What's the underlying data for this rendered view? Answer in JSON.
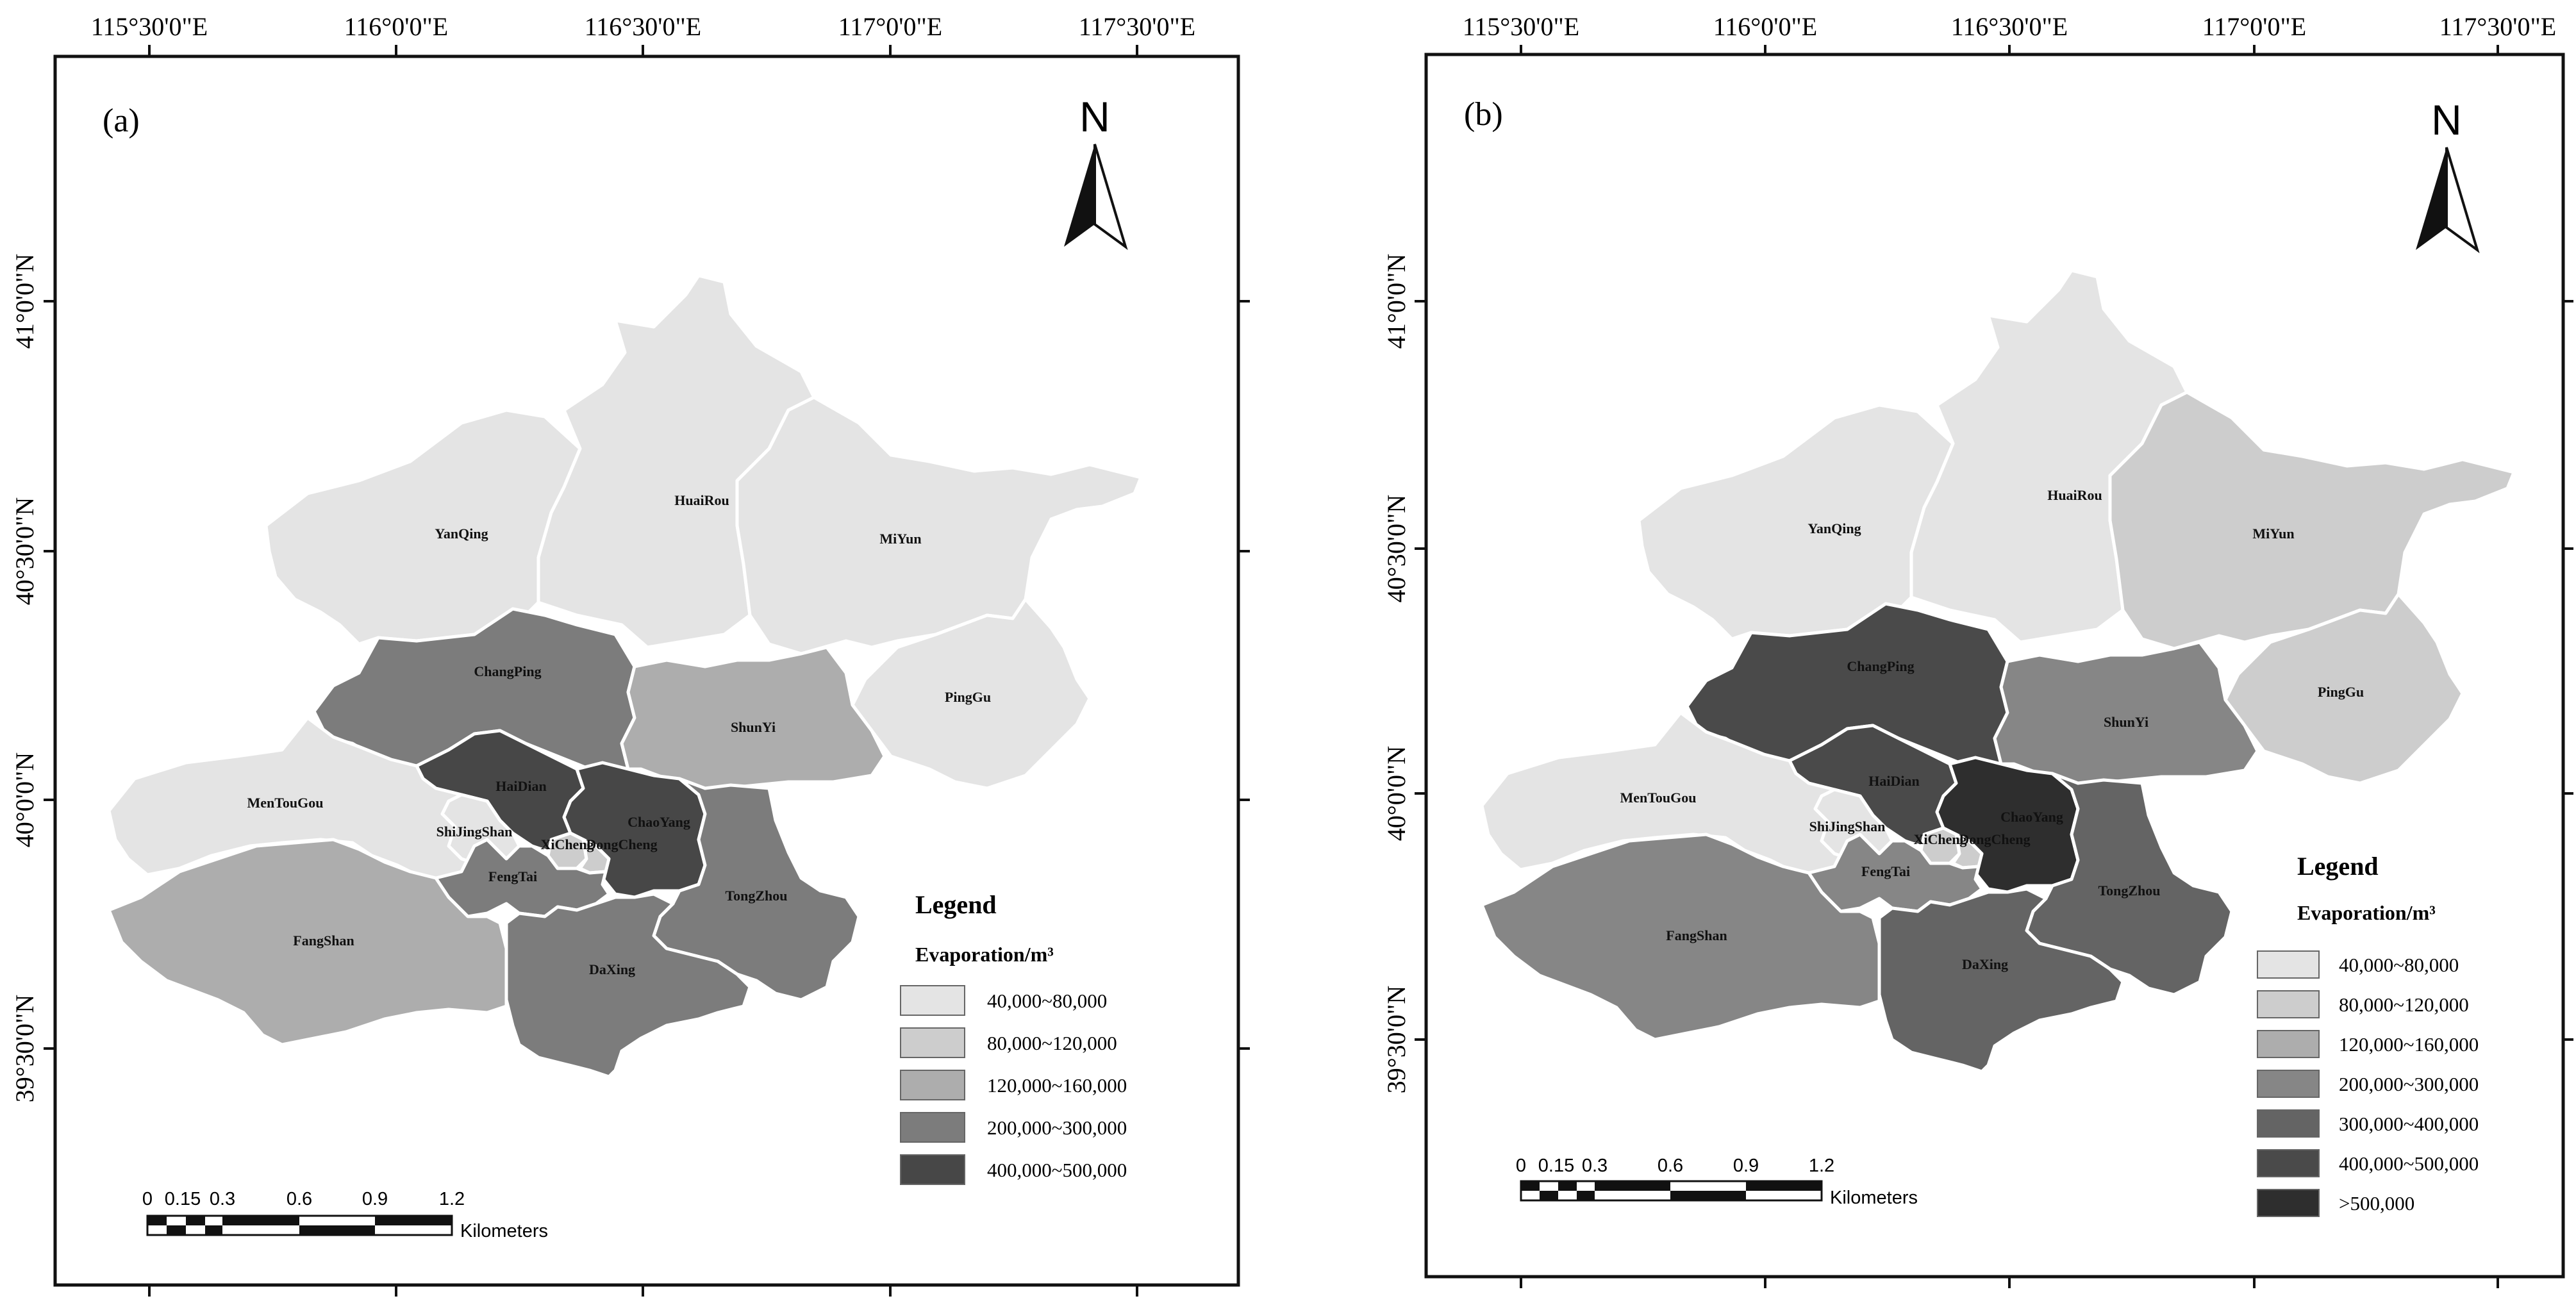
{
  "lon_labels": [
    "115°30'0\"E",
    "116°0'0\"E",
    "116°30'0\"E",
    "117°0'0\"E",
    "117°30'0\"E"
  ],
  "lat_labels": [
    "41°0'0\"N",
    "40°30'0\"N",
    "40°0'0\"N",
    "39°30'0\"N"
  ],
  "north_label": "N",
  "scale_bar": {
    "ticks": [
      "0",
      "0.15",
      "0.3",
      "0.6",
      "0.9",
      "1.2"
    ],
    "unit": "Kilometers"
  },
  "legend_title": "Legend",
  "legend_subtitle": "Evaporation/m³",
  "districts": [
    "YanQing",
    "HuaiRou",
    "MiYun",
    "PingGu",
    "ChangPing",
    "ShunYi",
    "HaiDian",
    "MenTouGou",
    "ShiJingShan",
    "ChaoYang",
    "XiCheng",
    "DongCheng",
    "FengTai",
    "TongZhou",
    "FangShan",
    "DaXing"
  ],
  "panels": [
    {
      "label": "(a)",
      "legend": [
        {
          "range": "40,000~80,000",
          "color": "#e4e4e4"
        },
        {
          "range": "80,000~120,000",
          "color": "#cdcdcd"
        },
        {
          "range": "120,000~160,000",
          "color": "#adadad"
        },
        {
          "range": "200,000~300,000",
          "color": "#7c7c7c"
        },
        {
          "range": "400,000~500,000",
          "color": "#474747"
        }
      ],
      "fills": {
        "YanQing": "#e4e4e4",
        "HuaiRou": "#e4e4e4",
        "MiYun": "#e4e4e4",
        "PingGu": "#e4e4e4",
        "ChangPing": "#7c7c7c",
        "ShunYi": "#adadad",
        "HaiDian": "#474747",
        "MenTouGou": "#e4e4e4",
        "ShiJingShan": "#e4e4e4",
        "ChaoYang": "#474747",
        "XiCheng": "#cdcdcd",
        "DongCheng": "#cdcdcd",
        "FengTai": "#7c7c7c",
        "TongZhou": "#7c7c7c",
        "FangShan": "#adadad",
        "DaXing": "#7c7c7c"
      }
    },
    {
      "label": "(b)",
      "legend": [
        {
          "range": "40,000~80,000",
          "color": "#e4e4e4"
        },
        {
          "range": "80,000~120,000",
          "color": "#cdcdcd"
        },
        {
          "range": "120,000~160,000",
          "color": "#adadad"
        },
        {
          "range": "200,000~300,000",
          "color": "#868686"
        },
        {
          "range": "300,000~400,000",
          "color": "#646464"
        },
        {
          "range": "400,000~500,000",
          "color": "#4a4a4a"
        },
        {
          "range": ">500,000",
          "color": "#2e2e2e"
        }
      ],
      "fills": {
        "YanQing": "#e4e4e4",
        "HuaiRou": "#e4e4e4",
        "MiYun": "#cdcdcd",
        "PingGu": "#cdcdcd",
        "ChangPing": "#4a4a4a",
        "ShunYi": "#868686",
        "HaiDian": "#4a4a4a",
        "MenTouGou": "#e4e4e4",
        "ShiJingShan": "#e4e4e4",
        "ChaoYang": "#2e2e2e",
        "XiCheng": "#cdcdcd",
        "DongCheng": "#cdcdcd",
        "FengTai": "#868686",
        "TongZhou": "#646464",
        "FangShan": "#868686",
        "DaXing": "#646464"
      }
    }
  ]
}
